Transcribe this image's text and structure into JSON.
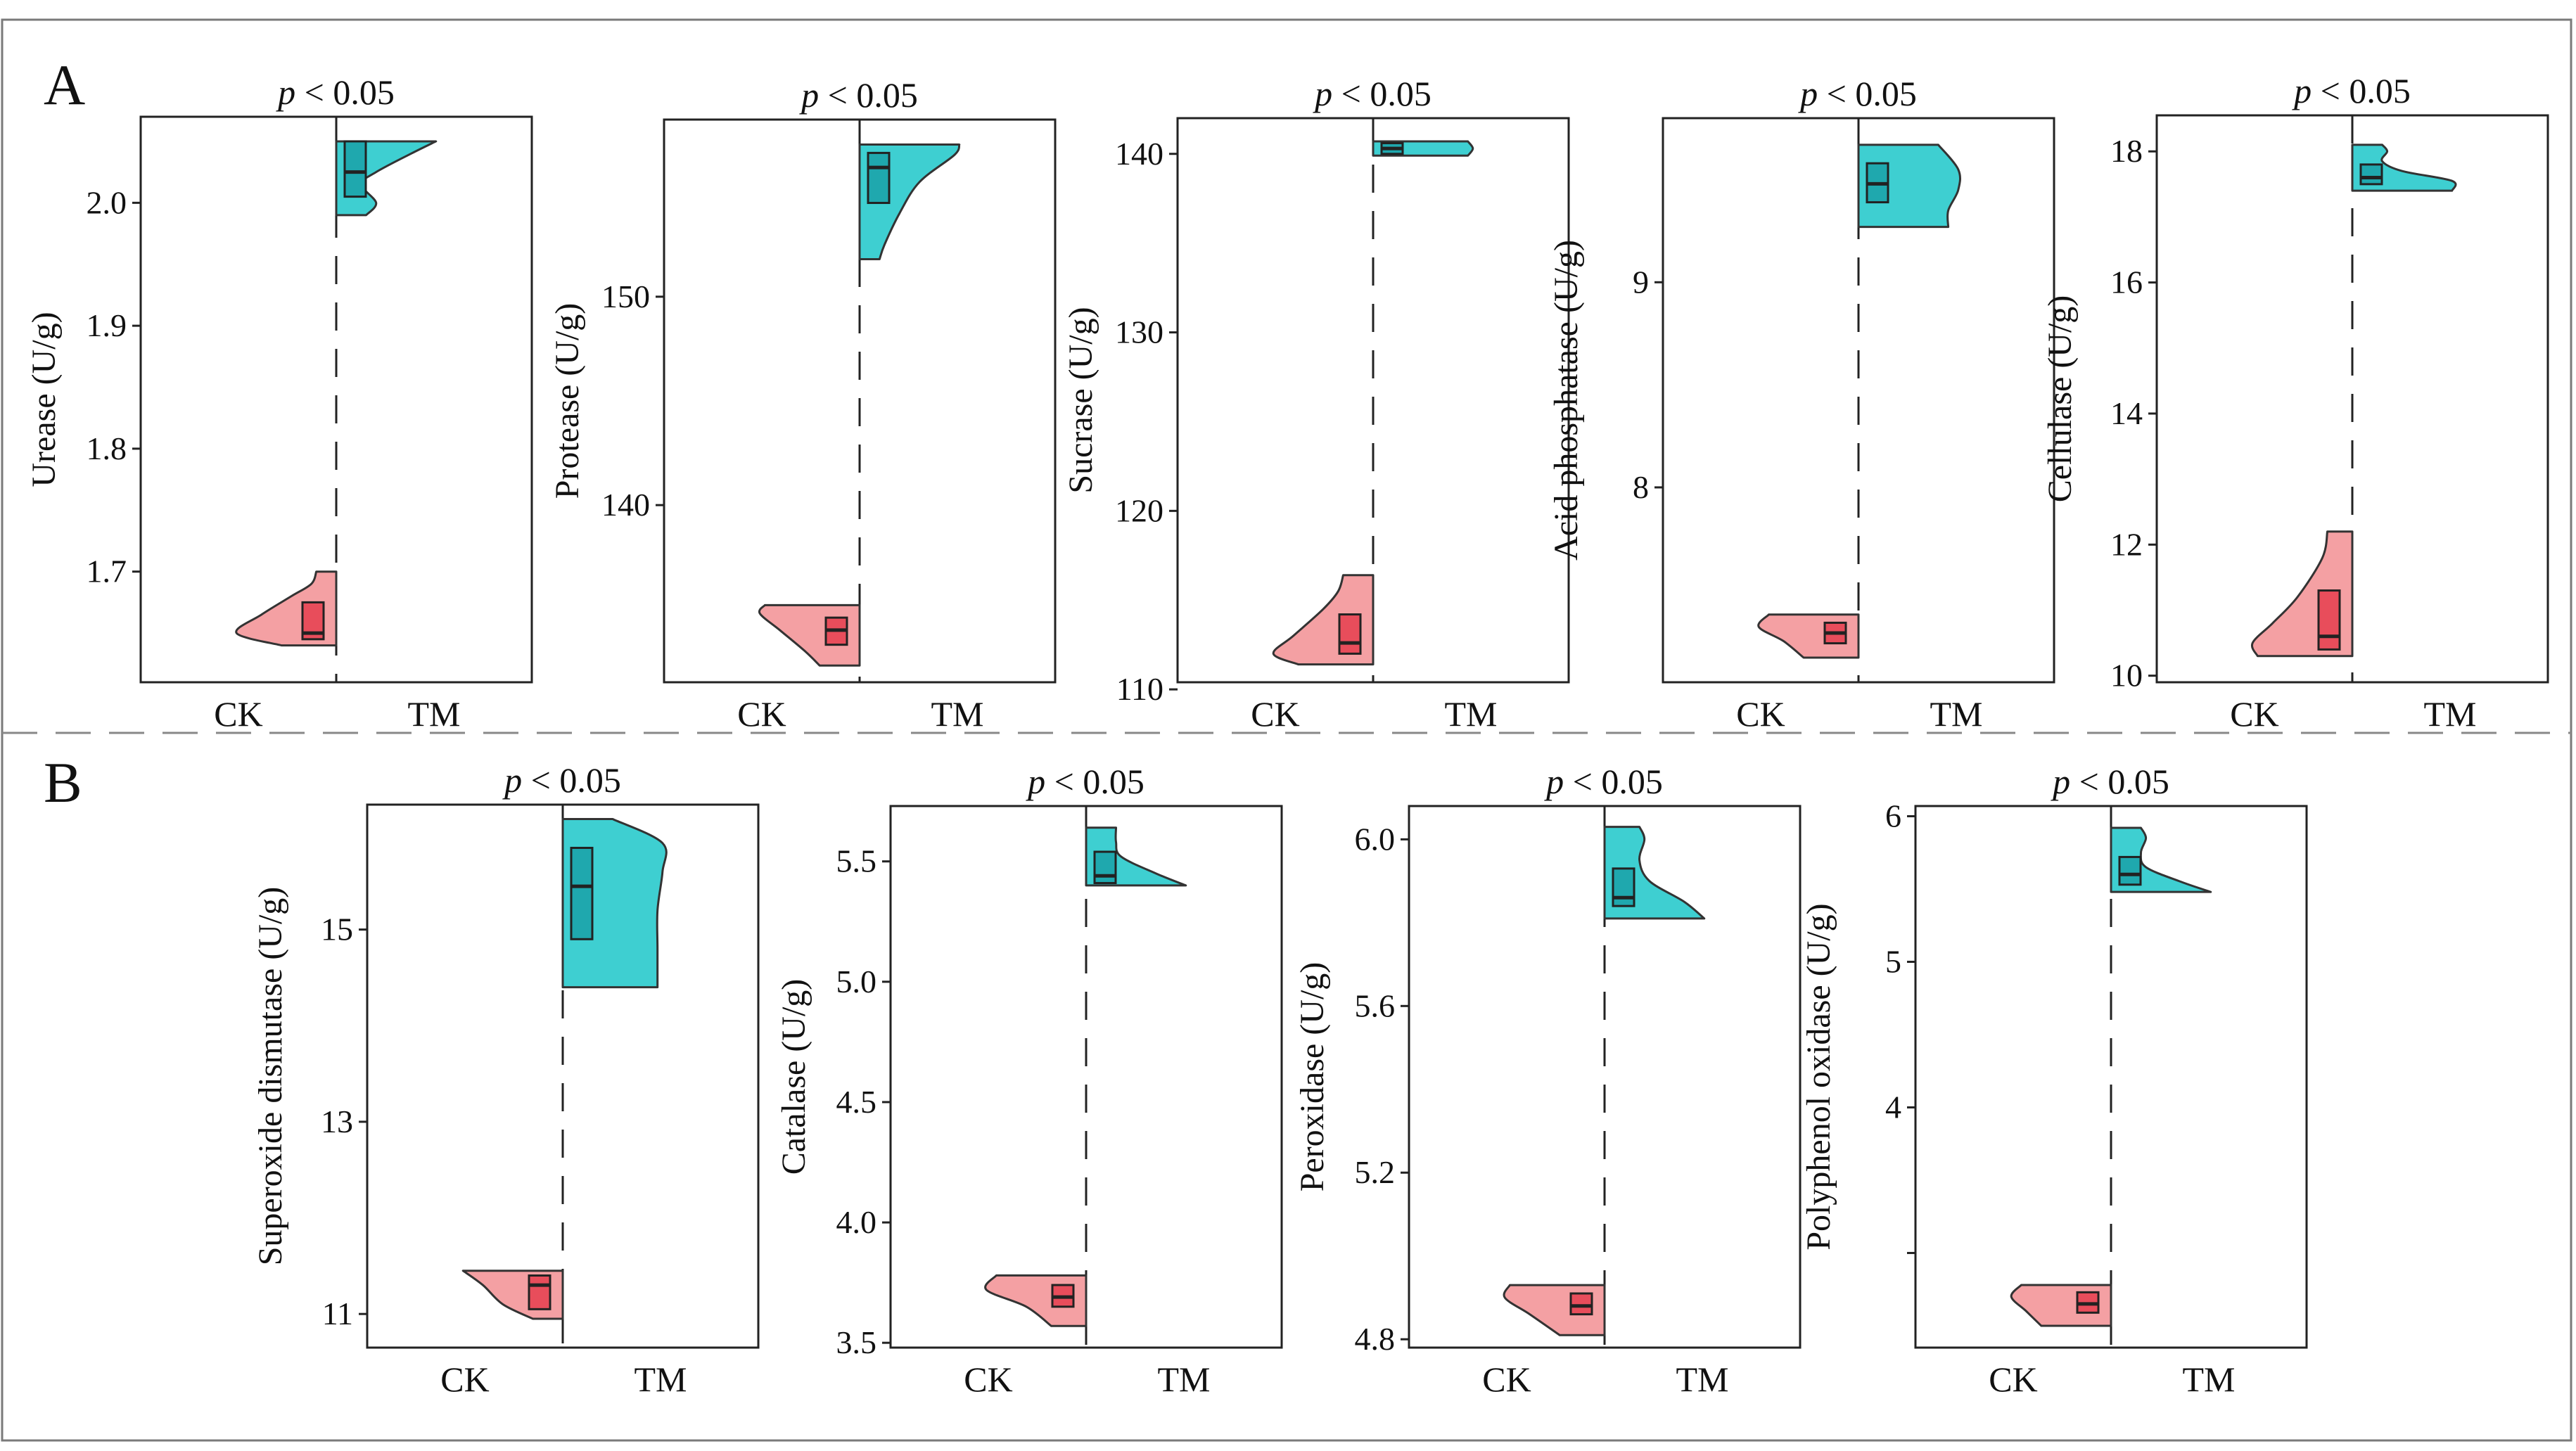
{
  "figure": {
    "panels": [
      {
        "letter": "A"
      },
      {
        "letter": "B"
      }
    ],
    "colors": {
      "ck_violin": "#F4A0A3",
      "ck_box": "#E84D5B",
      "tm_violin": "#3ECFD1",
      "tm_box": "#1FA8AE",
      "outline": "#333333",
      "frame": "#7a7a7a"
    }
  },
  "chart_data": [
    {
      "type": "violin",
      "panel": "A",
      "title": "p < 0.05",
      "title_italic": "p",
      "title_rest": " < 0.05",
      "ylabel": "Urease (U/g)",
      "categories": [
        "CK",
        "TM"
      ],
      "ylim": [
        1.61,
        2.07
      ],
      "yticks": [
        1.7,
        1.8,
        1.9,
        2.0
      ],
      "ytick_labels": [
        "1.7",
        "1.8",
        "1.9",
        "2.0"
      ],
      "groups": [
        {
          "name": "CK",
          "min": 1.64,
          "max": 1.7,
          "q1": 1.645,
          "median": 1.65,
          "q3": 1.675,
          "density": [
            [
              1.64,
              0.55
            ],
            [
              1.65,
              1.0
            ],
            [
              1.665,
              0.75
            ],
            [
              1.68,
              0.45
            ],
            [
              1.69,
              0.25
            ],
            [
              1.7,
              0.2
            ]
          ]
        },
        {
          "name": "TM",
          "min": 1.99,
          "max": 2.05,
          "q1": 2.005,
          "median": 2.025,
          "q3": 2.05,
          "density": [
            [
              1.99,
              0.3
            ],
            [
              2.0,
              0.4
            ],
            [
              2.015,
              0.25
            ],
            [
              2.025,
              0.4
            ],
            [
              2.04,
              0.75
            ],
            [
              2.05,
              1.0
            ]
          ]
        }
      ]
    },
    {
      "type": "violin",
      "panel": "A",
      "title": "p < 0.05",
      "title_italic": "p",
      "title_rest": " < 0.05",
      "ylabel": "Protease (U/g)",
      "categories": [
        "CK",
        "TM"
      ],
      "ylim": [
        131.5,
        158.5
      ],
      "yticks": [
        140,
        150
      ],
      "ytick_labels": [
        "140",
        "150"
      ],
      "groups": [
        {
          "name": "CK",
          "min": 132.3,
          "max": 135.2,
          "q1": 133.3,
          "median": 134.0,
          "q3": 134.6,
          "density": [
            [
              132.3,
              0.4
            ],
            [
              133.0,
              0.55
            ],
            [
              134.0,
              0.8
            ],
            [
              134.8,
              1.0
            ],
            [
              135.2,
              0.95
            ]
          ]
        },
        {
          "name": "TM",
          "min": 151.8,
          "max": 157.3,
          "q1": 154.5,
          "median": 156.2,
          "q3": 156.9,
          "density": [
            [
              151.8,
              0.2
            ],
            [
              152.5,
              0.25
            ],
            [
              154.0,
              0.4
            ],
            [
              155.5,
              0.6
            ],
            [
              156.8,
              0.95
            ],
            [
              157.3,
              1.0
            ]
          ]
        }
      ]
    },
    {
      "type": "violin",
      "panel": "A",
      "title": "p < 0.05",
      "title_italic": "p",
      "title_rest": " < 0.05",
      "ylabel": "Sucrase (U/g)",
      "categories": [
        "CK",
        "TM"
      ],
      "ylim": [
        110.4,
        142.0
      ],
      "yticks": [
        110,
        120,
        130,
        140
      ],
      "ytick_labels": [
        "110",
        "120",
        "130",
        "140"
      ],
      "groups": [
        {
          "name": "CK",
          "min": 111.4,
          "max": 116.4,
          "q1": 112.0,
          "median": 112.6,
          "q3": 114.2,
          "density": [
            [
              111.4,
              0.75
            ],
            [
              112.0,
              1.0
            ],
            [
              113.0,
              0.8
            ],
            [
              114.5,
              0.5
            ],
            [
              115.5,
              0.35
            ],
            [
              116.4,
              0.3
            ]
          ]
        },
        {
          "name": "TM",
          "min": 139.9,
          "max": 140.7,
          "q1": 140.0,
          "median": 140.3,
          "q3": 140.6,
          "density": [
            [
              139.9,
              0.95
            ],
            [
              140.3,
              1.0
            ],
            [
              140.7,
              0.95
            ]
          ]
        }
      ]
    },
    {
      "type": "violin",
      "panel": "A",
      "title": "p < 0.05",
      "title_italic": "p",
      "title_rest": " < 0.05",
      "ylabel": "Acid phosphatase (U/g)",
      "categories": [
        "CK",
        "TM"
      ],
      "ylim": [
        7.05,
        9.8
      ],
      "yticks": [
        8,
        9
      ],
      "ytick_labels": [
        "8",
        "9"
      ],
      "groups": [
        {
          "name": "CK",
          "min": 7.17,
          "max": 7.38,
          "q1": 7.24,
          "median": 7.29,
          "q3": 7.34,
          "density": [
            [
              7.17,
              0.55
            ],
            [
              7.25,
              0.75
            ],
            [
              7.32,
              1.0
            ],
            [
              7.38,
              0.9
            ]
          ]
        },
        {
          "name": "TM",
          "min": 9.27,
          "max": 9.67,
          "q1": 9.39,
          "median": 9.48,
          "q3": 9.58,
          "density": [
            [
              9.27,
              0.9
            ],
            [
              9.35,
              0.9
            ],
            [
              9.45,
              1.0
            ],
            [
              9.55,
              1.0
            ],
            [
              9.67,
              0.8
            ]
          ]
        }
      ]
    },
    {
      "type": "violin",
      "panel": "A",
      "title": "p < 0.05",
      "title_italic": "p",
      "title_rest": " < 0.05",
      "ylabel": "Cellulase (U/g)",
      "categories": [
        "CK",
        "TM"
      ],
      "ylim": [
        9.9,
        18.55
      ],
      "yticks": [
        10,
        12,
        14,
        16,
        18
      ],
      "ytick_labels": [
        "10",
        "12",
        "14",
        "16",
        "18"
      ],
      "groups": [
        {
          "name": "CK",
          "min": 10.3,
          "max": 12.2,
          "q1": 10.4,
          "median": 10.6,
          "q3": 11.3,
          "density": [
            [
              10.3,
              0.95
            ],
            [
              10.5,
              1.0
            ],
            [
              10.8,
              0.8
            ],
            [
              11.2,
              0.55
            ],
            [
              11.8,
              0.3
            ],
            [
              12.2,
              0.25
            ]
          ]
        },
        {
          "name": "TM",
          "min": 17.4,
          "max": 18.1,
          "q1": 17.5,
          "median": 17.6,
          "q3": 17.8,
          "density": [
            [
              17.4,
              1.0
            ],
            [
              17.55,
              1.0
            ],
            [
              17.7,
              0.5
            ],
            [
              17.85,
              0.3
            ],
            [
              18.0,
              0.35
            ],
            [
              18.1,
              0.3
            ]
          ]
        }
      ]
    },
    {
      "type": "violin",
      "panel": "B",
      "title": "p < 0.05",
      "title_italic": "p",
      "title_rest": " < 0.05",
      "ylabel": "Superoxide dismutase (U/g)",
      "categories": [
        "CK",
        "TM"
      ],
      "ylim": [
        10.65,
        16.3
      ],
      "yticks": [
        11,
        13,
        15
      ],
      "ytick_labels": [
        "11",
        "13",
        "15"
      ],
      "groups": [
        {
          "name": "CK",
          "min": 10.95,
          "max": 11.45,
          "q1": 11.05,
          "median": 11.3,
          "q3": 11.4,
          "density": [
            [
              10.95,
              0.3
            ],
            [
              11.1,
              0.6
            ],
            [
              11.3,
              0.8
            ],
            [
              11.45,
              1.0
            ]
          ]
        },
        {
          "name": "TM",
          "min": 14.4,
          "max": 16.15,
          "q1": 14.9,
          "median": 15.45,
          "q3": 15.85,
          "density": [
            [
              14.4,
              0.95
            ],
            [
              14.8,
              0.95
            ],
            [
              15.2,
              0.95
            ],
            [
              15.6,
              1.0
            ],
            [
              15.9,
              1.0
            ],
            [
              16.15,
              0.5
            ]
          ]
        }
      ]
    },
    {
      "type": "violin",
      "panel": "B",
      "title": "p < 0.05",
      "title_italic": "p",
      "title_rest": " < 0.05",
      "ylabel": "Catalase (U/g)",
      "categories": [
        "CK",
        "TM"
      ],
      "ylim": [
        3.48,
        5.73
      ],
      "yticks": [
        3.5,
        4.0,
        4.5,
        5.0,
        5.5
      ],
      "ytick_labels": [
        "3.5",
        "4.0",
        "4.5",
        "5.0",
        "5.5"
      ],
      "groups": [
        {
          "name": "CK",
          "min": 3.57,
          "max": 3.78,
          "q1": 3.65,
          "median": 3.69,
          "q3": 3.74,
          "density": [
            [
              3.57,
              0.35
            ],
            [
              3.65,
              0.6
            ],
            [
              3.72,
              1.0
            ],
            [
              3.78,
              0.9
            ]
          ]
        },
        {
          "name": "TM",
          "min": 5.4,
          "max": 5.64,
          "q1": 5.41,
          "median": 5.44,
          "q3": 5.54,
          "density": [
            [
              5.4,
              1.0
            ],
            [
              5.45,
              0.7
            ],
            [
              5.52,
              0.35
            ],
            [
              5.58,
              0.3
            ],
            [
              5.64,
              0.3
            ]
          ]
        }
      ]
    },
    {
      "type": "violin",
      "panel": "B",
      "title": "p < 0.05",
      "title_italic": "p",
      "title_rest": " < 0.05",
      "ylabel": "Peroxidase (U/g)",
      "categories": [
        "CK",
        "TM"
      ],
      "ylim": [
        4.78,
        6.08
      ],
      "yticks": [
        4.8,
        5.2,
        5.6,
        6.0
      ],
      "ytick_labels": [
        "4.8",
        "5.2",
        "5.6",
        "6.0"
      ],
      "groups": [
        {
          "name": "CK",
          "min": 4.81,
          "max": 4.93,
          "q1": 4.86,
          "median": 4.88,
          "q3": 4.91,
          "density": [
            [
              4.81,
              0.45
            ],
            [
              4.86,
              0.75
            ],
            [
              4.9,
              1.0
            ],
            [
              4.93,
              0.95
            ]
          ]
        },
        {
          "name": "TM",
          "min": 5.81,
          "max": 6.03,
          "q1": 5.84,
          "median": 5.86,
          "q3": 5.93,
          "density": [
            [
              5.81,
              1.0
            ],
            [
              5.85,
              0.8
            ],
            [
              5.9,
              0.45
            ],
            [
              5.95,
              0.35
            ],
            [
              6.0,
              0.4
            ],
            [
              6.03,
              0.35
            ]
          ]
        }
      ]
    },
    {
      "type": "violin",
      "panel": "B",
      "title": "p < 0.05",
      "title_italic": "p",
      "title_rest": " < 0.05",
      "ylabel": "Polyphenol oxidase (U/g)",
      "categories": [
        "CK",
        "TM"
      ],
      "ylim": [
        2.35,
        6.07
      ],
      "yticks": [
        3,
        4,
        5,
        6
      ],
      "ytick_labels": [
        "",
        "4",
        "5",
        "6"
      ],
      "groups": [
        {
          "name": "CK",
          "min": 2.5,
          "max": 2.78,
          "q1": 2.59,
          "median": 2.65,
          "q3": 2.73,
          "density": [
            [
              2.5,
              0.7
            ],
            [
              2.6,
              0.85
            ],
            [
              2.7,
              1.0
            ],
            [
              2.78,
              0.9
            ]
          ]
        },
        {
          "name": "TM",
          "min": 5.48,
          "max": 5.92,
          "q1": 5.53,
          "median": 5.6,
          "q3": 5.72,
          "density": [
            [
              5.48,
              1.0
            ],
            [
              5.55,
              0.7
            ],
            [
              5.65,
              0.35
            ],
            [
              5.75,
              0.3
            ],
            [
              5.85,
              0.35
            ],
            [
              5.92,
              0.3
            ]
          ]
        }
      ]
    }
  ]
}
